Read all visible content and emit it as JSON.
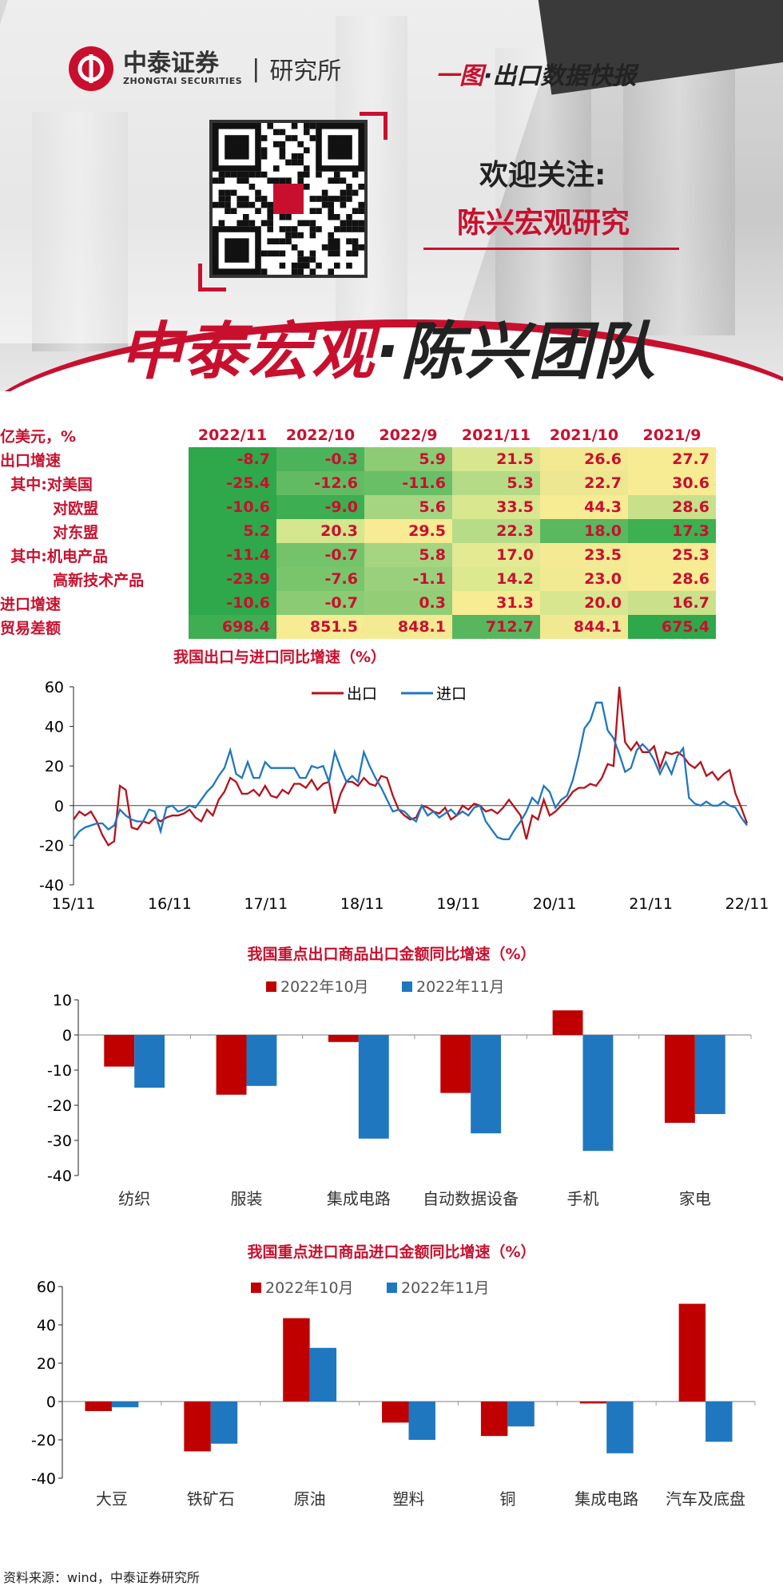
{
  "header": {
    "logo_name": "中泰证券",
    "logo_sub": "ZHONGTAI SECURITIES",
    "logo_sep": "|",
    "logo_inst": "研究所",
    "tagline_red": "一图",
    "tagline_rest": "·出口数据快报",
    "welcome": "欢迎关注:",
    "account": "陈兴宏观研究",
    "team_red": "中泰宏观",
    "team_dark": "·陈兴团队"
  },
  "table": {
    "unit_label": "亿美元，%",
    "columns": [
      "2022/11",
      "2022/10",
      "2022/9",
      "2021/11",
      "2021/10",
      "2021/9"
    ],
    "rows": [
      {
        "label": "出口增速",
        "values": [
          "-8.7",
          "-0.3",
          "5.9",
          "21.5",
          "26.6",
          "27.7"
        ],
        "colors": [
          "#2ea84a",
          "#4cb35a",
          "#8dcc74",
          "#d8e78f",
          "#f2e992",
          "#f7eb94"
        ]
      },
      {
        "label": "  其中:对美国",
        "values": [
          "-25.4",
          "-12.6",
          "-11.6",
          "5.3",
          "22.7",
          "30.6"
        ],
        "colors": [
          "#2ea84a",
          "#62bb63",
          "#69bf66",
          "#b5db86",
          "#ece790",
          "#f7eb94"
        ]
      },
      {
        "label": "          对欧盟",
        "values": [
          "-10.6",
          "-9.0",
          "5.6",
          "33.5",
          "44.3",
          "28.6"
        ],
        "colors": [
          "#2ea84a",
          "#3dae51",
          "#a6d582",
          "#d9e88f",
          "#f7eb94",
          "#c8e08a"
        ]
      },
      {
        "label": "          对东盟",
        "values": [
          "5.2",
          "20.3",
          "29.5",
          "22.3",
          "18.0",
          "17.3"
        ],
        "colors": [
          "#2ea84a",
          "#d4e68e",
          "#f7eb94",
          "#b7dc87",
          "#5ab85f",
          "#3db051"
        ]
      },
      {
        "label": "  其中:机电产品",
        "values": [
          "-11.4",
          "-0.7",
          "5.8",
          "17.0",
          "23.5",
          "25.3"
        ],
        "colors": [
          "#2ea84a",
          "#74c36b",
          "#a5d581",
          "#e3ea91",
          "#f3ea93",
          "#f7eb94"
        ]
      },
      {
        "label": "          高新技术产品",
        "values": [
          "-23.9",
          "-7.6",
          "-1.1",
          "14.2",
          "23.0",
          "28.6"
        ],
        "colors": [
          "#2ea84a",
          "#79c56c",
          "#9ad07c",
          "#dde98f",
          "#f2ea93",
          "#f7eb94"
        ]
      },
      {
        "label": "进口增速",
        "values": [
          "-10.6",
          "-0.7",
          "0.3",
          "31.3",
          "20.0",
          "16.7"
        ],
        "colors": [
          "#2ea84a",
          "#8acb73",
          "#93ce77",
          "#f7eb94",
          "#d8e78f",
          "#c9e18a"
        ]
      },
      {
        "label": "贸易差额",
        "values": [
          "698.4",
          "851.5",
          "848.1",
          "712.7",
          "844.1",
          "675.4"
        ],
        "colors": [
          "#3fae52",
          "#f7eb94",
          "#f4ea93",
          "#58b75e",
          "#f1e992",
          "#2ea84a"
        ]
      }
    ]
  },
  "chart_data": [
    {
      "type": "line",
      "title": "我国出口与进口同比增速（%）",
      "ylim": [
        -40,
        60
      ],
      "yticks": [
        -40,
        -20,
        0,
        20,
        40,
        60
      ],
      "x_tick_labels": [
        "15/11",
        "16/11",
        "17/11",
        "18/11",
        "19/11",
        "20/11",
        "21/11",
        "22/11"
      ],
      "legend_position": "top",
      "series": [
        {
          "name": "出口",
          "color": "#b5121b",
          "values": [
            -7,
            -3,
            -5,
            -3,
            -8,
            -15,
            -20,
            -18,
            10,
            8,
            -11,
            -12,
            -8,
            -9,
            -6,
            -8,
            -6,
            -5,
            -5,
            -4,
            -2,
            -6,
            -8,
            -2,
            -5,
            3,
            7,
            14,
            12,
            6,
            6,
            8,
            5,
            10,
            5,
            4,
            8,
            6,
            11,
            11,
            9,
            13,
            8,
            11,
            12,
            -4,
            6,
            12,
            12,
            10,
            14,
            11,
            10,
            15,
            14,
            5,
            -2,
            -5,
            -7,
            -6,
            0,
            -1,
            -3,
            -4,
            -1,
            -7,
            -5,
            0,
            -2,
            1,
            0,
            -3,
            -2,
            -4,
            -1,
            3,
            -1,
            -5,
            -17,
            -5,
            -7,
            3,
            -5,
            -3,
            0,
            3,
            7,
            9,
            9,
            11,
            10,
            14,
            21,
            20,
            60,
            32,
            28,
            32,
            27,
            27,
            30,
            19,
            27,
            26,
            27,
            25,
            21,
            19,
            22,
            15,
            17,
            13,
            16,
            18,
            6,
            -1,
            -9
          ]
        },
        {
          "name": "进口",
          "color": "#1f77c0",
          "values": [
            -17,
            -13,
            -11,
            -10,
            -9,
            -9,
            -12,
            -10,
            -2,
            -5,
            -7,
            -8,
            -8,
            -2,
            -3,
            -13,
            -1,
            0,
            -3,
            -2,
            0,
            -1,
            3,
            7,
            10,
            15,
            19,
            28,
            16,
            14,
            22,
            14,
            14,
            22,
            19,
            19,
            19,
            19,
            19,
            14,
            14,
            20,
            19,
            20,
            12,
            27,
            19,
            12,
            15,
            12,
            27,
            20,
            14,
            9,
            3,
            -3,
            -2,
            -3,
            -6,
            -8,
            0,
            -5,
            -3,
            -6,
            -4,
            -2,
            -5,
            -3,
            -5,
            -1,
            0,
            -8,
            -12,
            -16,
            -17,
            -17,
            -12,
            -8,
            -3,
            4,
            1,
            10,
            7,
            -1,
            3,
            5,
            13,
            25,
            39,
            43,
            52,
            52,
            38,
            34,
            26,
            17,
            19,
            28,
            31,
            28,
            23,
            16,
            22,
            16,
            25,
            29,
            4,
            1,
            0,
            2,
            0,
            0,
            2,
            0,
            -1,
            -6,
            -10
          ]
        }
      ]
    },
    {
      "type": "bar",
      "title": "我国重点出口商品出口金额同比增速（%）",
      "categories": [
        "纺织",
        "服装",
        "集成电路",
        "自动数据设备",
        "手机",
        "家电"
      ],
      "ylim": [
        -40,
        10
      ],
      "yticks": [
        -40,
        -30,
        -20,
        -10,
        0,
        10
      ],
      "legend_position": "top",
      "series": [
        {
          "name": "2022年10月",
          "color": "#c00000",
          "values": [
            -9,
            -17,
            -2,
            -16.5,
            7,
            -25
          ]
        },
        {
          "name": "2022年11月",
          "color": "#1f77c0",
          "values": [
            -15,
            -14.5,
            -29.5,
            -28,
            -33,
            -22.5
          ]
        }
      ]
    },
    {
      "type": "bar",
      "title": "我国重点进口商品进口金额同比增速（%）",
      "categories": [
        "大豆",
        "铁矿石",
        "原油",
        "塑料",
        "铜",
        "集成电路",
        "汽车及底盘"
      ],
      "ylim": [
        -40,
        60
      ],
      "yticks": [
        -40,
        -20,
        0,
        20,
        40,
        60
      ],
      "legend_position": "top",
      "series": [
        {
          "name": "2022年10月",
          "color": "#c00000",
          "values": [
            -5,
            -26,
            43.5,
            -11,
            -18,
            -1,
            51
          ]
        },
        {
          "name": "2022年11月",
          "color": "#1f77c0",
          "values": [
            -3,
            -22,
            28,
            -20,
            -13,
            -27,
            -21
          ]
        }
      ]
    }
  ],
  "footer": {
    "source": "资料来源：wind，中泰证券研究所"
  }
}
